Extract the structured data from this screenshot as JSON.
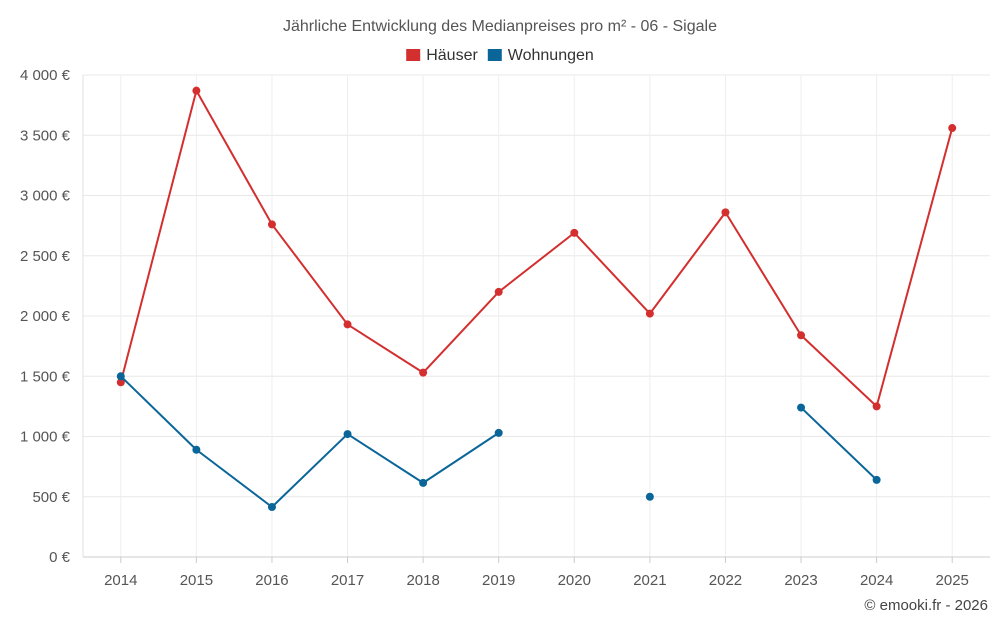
{
  "chart_data": {
    "type": "line",
    "title": "Jährliche Entwicklung des Medianpreises pro m² - 06 - Sigale",
    "categories": [
      "2014",
      "2015",
      "2016",
      "2017",
      "2018",
      "2019",
      "2020",
      "2021",
      "2022",
      "2023",
      "2024",
      "2025"
    ],
    "y_ticks": [
      0,
      500,
      1000,
      1500,
      2000,
      2500,
      3000,
      3500,
      4000
    ],
    "y_tick_labels": [
      "0 €",
      "500 €",
      "1 000 €",
      "1 500 €",
      "2 000 €",
      "2 500 €",
      "3 000 €",
      "3 500 €",
      "4 000 €"
    ],
    "ylim": [
      0,
      4000
    ],
    "grid": true,
    "legend_position": "top-center",
    "series": [
      {
        "name": "Häuser",
        "color": "#d32f2f",
        "values": [
          1450,
          3870,
          2760,
          1930,
          1530,
          2200,
          2690,
          2020,
          2860,
          1840,
          1250,
          3560
        ]
      },
      {
        "name": "Wohnungen",
        "color": "#0a6699",
        "values": [
          1500,
          890,
          415,
          1020,
          615,
          1030,
          null,
          500,
          null,
          1240,
          640,
          null
        ]
      }
    ],
    "credit": "© emooki.fr - 2026"
  }
}
